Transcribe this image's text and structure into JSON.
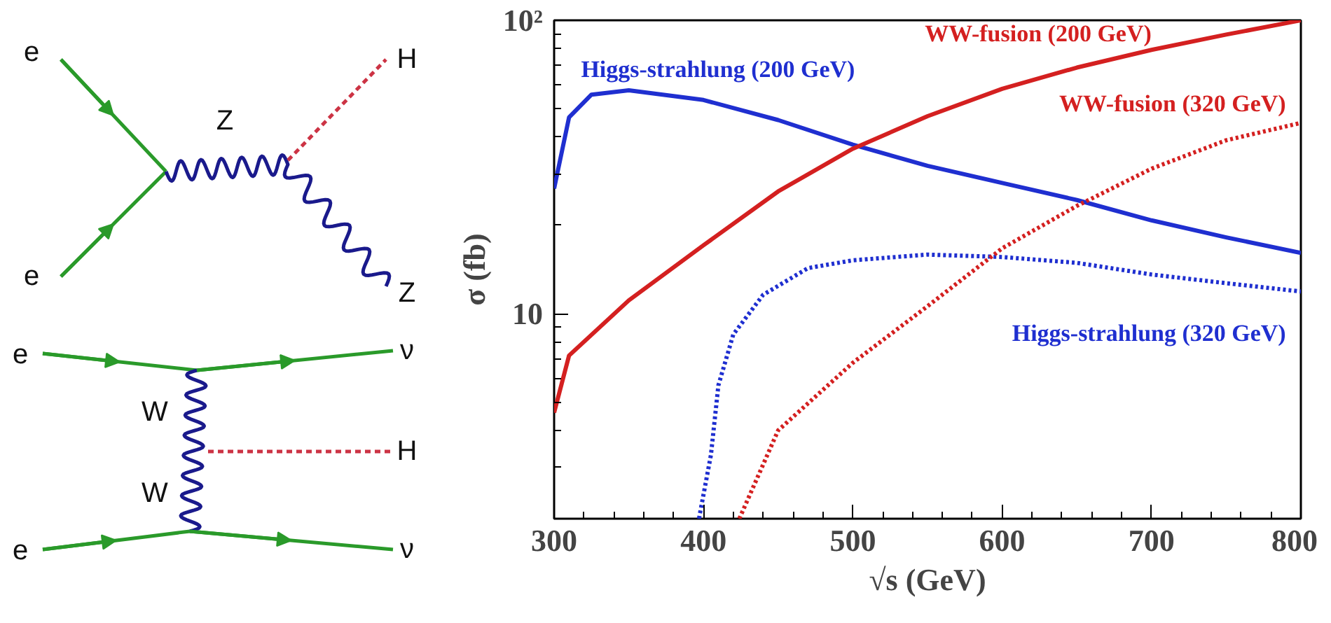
{
  "chart_data": {
    "type": "line",
    "xlabel": "√s (GeV)",
    "ylabel": "σ (fb)",
    "log": "y",
    "xlim": [
      300,
      800
    ],
    "xticks": [
      300,
      400,
      500,
      600,
      700,
      800
    ],
    "ylim": [
      2,
      100
    ],
    "yticks": [
      10,
      {
        "value": 100,
        "label": "10²"
      }
    ],
    "series": [
      {
        "name": "Higgs-strahlung (200 GeV)",
        "color": "#1f2fd0",
        "line_style": "solid",
        "x": [
          300,
          310,
          325,
          350,
          400,
          450,
          500,
          550,
          600,
          650,
          700,
          750,
          800
        ],
        "values": [
          26.7,
          46.7,
          55.8,
          57.7,
          53.5,
          45.7,
          37.7,
          31.9,
          27.9,
          24.4,
          20.8,
          18.2,
          16.1
        ]
      },
      {
        "name": "WW-fusion (200 GeV)",
        "color": "#d42020",
        "line_style": "solid",
        "x": [
          300,
          310,
          350,
          400,
          450,
          500,
          550,
          600,
          650,
          700,
          750,
          800
        ],
        "values": [
          4.6,
          7.2,
          11.1,
          17.1,
          26.1,
          36.5,
          47.1,
          58.4,
          69,
          79.3,
          89.4,
          100
        ]
      },
      {
        "name": "Higgs-strahlung (320 GeV)",
        "color": "#1f2fd0",
        "line_style": "dotted",
        "x": [
          397,
          405,
          410,
          420,
          440,
          470,
          500,
          550,
          600,
          650,
          700,
          750,
          800
        ],
        "values": [
          2,
          3.3,
          5.7,
          8.5,
          11.6,
          14.3,
          15.2,
          15.9,
          15.6,
          14.9,
          13.6,
          12.7,
          11.9
        ]
      },
      {
        "name": "WW-fusion (320 GeV)",
        "color": "#d42020",
        "line_style": "dotted",
        "x": [
          424,
          450,
          500,
          550,
          600,
          650,
          700,
          750,
          800
        ],
        "values": [
          2,
          4.0,
          6.8,
          10.6,
          16.7,
          23.3,
          31.2,
          39,
          44.7
        ]
      }
    ],
    "annotations": [
      "e",
      "e",
      "Z",
      "H",
      "Z",
      "e",
      "ν",
      "W",
      "H",
      "W",
      "e",
      "ν"
    ]
  }
}
